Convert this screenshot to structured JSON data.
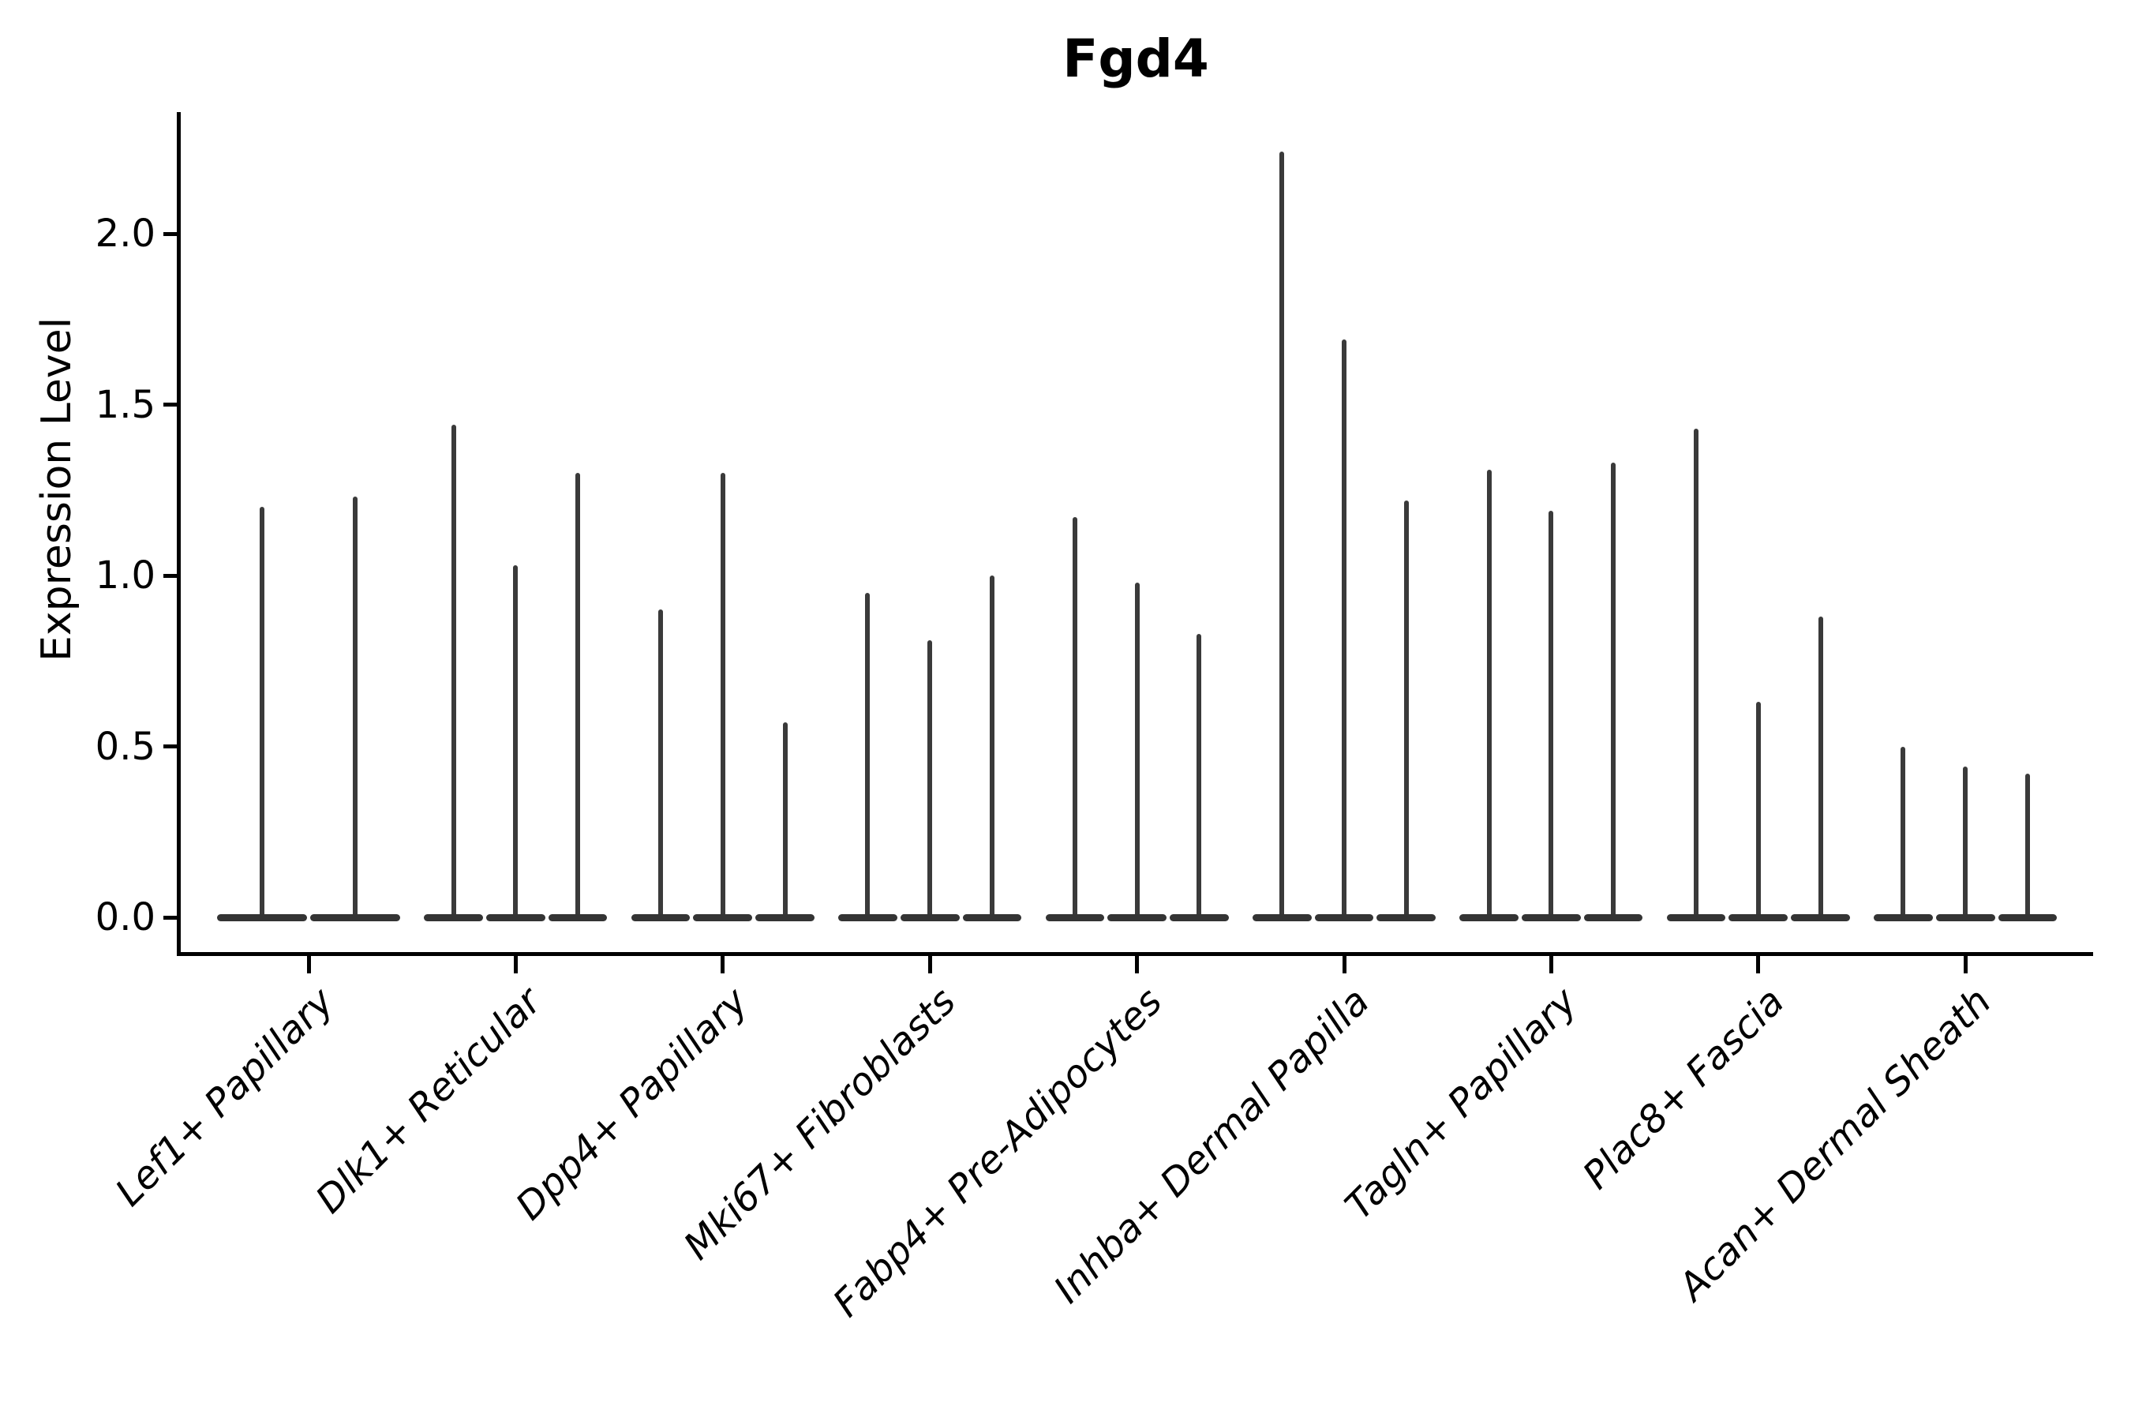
{
  "chart_data": {
    "type": "violin",
    "title": "Fgd4",
    "ylabel": "Expression Level",
    "xlabel": "",
    "grid": false,
    "legend": "none",
    "violin_style": "thin needle violins: wide flat base at 0 expression with a narrow spike up to the max value",
    "ytick_labels": [
      "0.0",
      "0.5",
      "1.0",
      "1.5",
      "2.0"
    ],
    "ytick_values": [
      0.0,
      0.5,
      1.0,
      1.5,
      2.0
    ],
    "ylim": [
      -0.11,
      2.36
    ],
    "colors": {
      "violin": "#3a3a3a",
      "axis": "#000000",
      "text": "#000000",
      "background": "#ffffff"
    },
    "categories": [
      "Lef1+ Papillary",
      "Dlk1+ Reticular",
      "Dpp4+ Papillary",
      "Mki67+ Fibroblasts",
      "Fabp4+ Pre-Adipocytes",
      "Inhba+ Dermal Papilla",
      "Tagln+ Papillary",
      "Plac8+ Fascia",
      "Acan+ Dermal Sheath"
    ],
    "groups": [
      {
        "label": "Lef1+ Papillary",
        "violin_max_values": [
          1.2,
          1.23
        ]
      },
      {
        "label": "Dlk1+ Reticular",
        "violin_max_values": [
          1.44,
          1.03,
          1.3
        ]
      },
      {
        "label": "Dpp4+ Papillary",
        "violin_max_values": [
          0.9,
          1.3,
          0.57
        ]
      },
      {
        "label": "Mki67+ Fibroblasts",
        "violin_max_values": [
          0.95,
          0.81,
          1.0
        ]
      },
      {
        "label": "Fabp4+ Pre-Adipocytes",
        "violin_max_values": [
          1.17,
          0.98,
          0.83
        ]
      },
      {
        "label": "Inhba+ Dermal Papilla",
        "violin_max_values": [
          2.24,
          1.69,
          1.22
        ]
      },
      {
        "label": "Tagln+ Papillary",
        "violin_max_values": [
          1.31,
          1.19,
          1.33
        ]
      },
      {
        "label": "Plac8+ Fascia",
        "violin_max_values": [
          1.43,
          0.63,
          0.88
        ]
      },
      {
        "label": "Acan+ Dermal Sheath",
        "violin_max_values": [
          0.5,
          0.44,
          0.42
        ]
      }
    ]
  }
}
